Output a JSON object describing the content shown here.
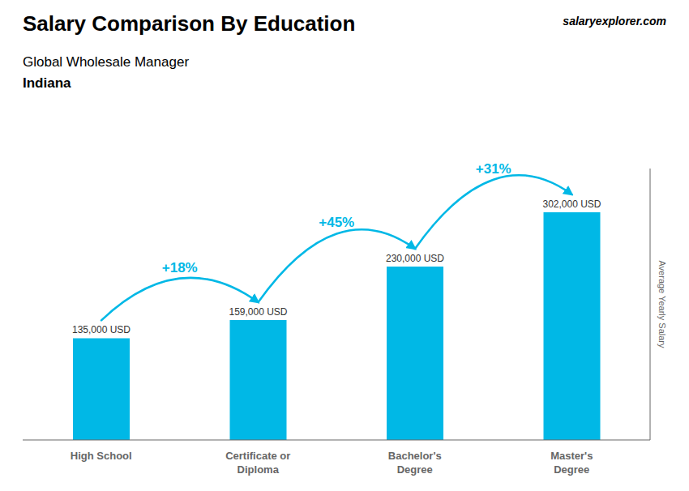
{
  "chart_data": {
    "type": "bar",
    "title": "Salary Comparison By Education",
    "subtitle": "Global Wholesale Manager",
    "annotations": [
      "Indiana",
      "salaryexplorer.com"
    ],
    "ylabel": "Average Yearly Salary",
    "categories": [
      "High School",
      "Certificate or\nDiploma",
      "Bachelor's\nDegree",
      "Master's\nDegree"
    ],
    "values": [
      135000,
      159000,
      230000,
      302000
    ],
    "value_labels": [
      "135,000 USD",
      "159,000 USD",
      "230,000 USD",
      "302,000 USD"
    ],
    "arc_labels": [
      "+18%",
      "+45%",
      "+31%"
    ],
    "color": "#00b8e6",
    "ylim": [
      0,
      360000
    ],
    "grid": false,
    "data_labels": true,
    "tick_labels": "x"
  }
}
